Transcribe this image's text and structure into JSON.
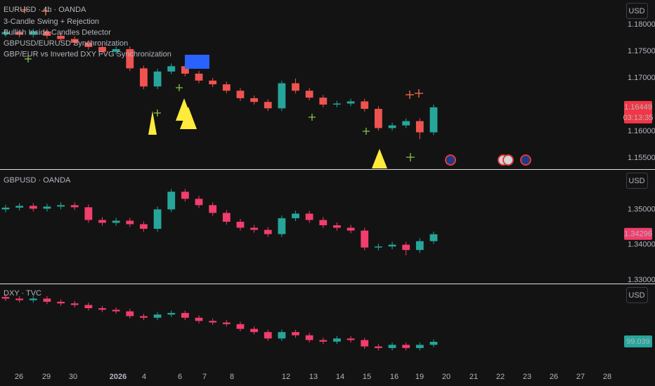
{
  "chart_data": [
    {
      "type": "candlestick",
      "title": "EURUSD · 4h · OANDA",
      "indicators": [
        "3-Candle Swing + Rejection",
        "Bullish Inside Candles Detector",
        "GBPUSD/EURUSD Synchronization",
        "GBP/EUR vs Inverted DXY FVG Synchronization"
      ],
      "currency": "USD",
      "countdown": "03:13:35",
      "price_label_color": "#f23645",
      "up_color": "#26a69a",
      "down_color": "#ef5350",
      "grid": false,
      "ylim": [
        1.15303,
        1.18461
      ],
      "yticks": [
        {
          "value": 1.155,
          "label": "1.15500"
        },
        {
          "value": 1.16,
          "label": "1.16000"
        },
        {
          "value": 1.17,
          "label": "1.17000"
        },
        {
          "value": 1.175,
          "label": "1.17500"
        },
        {
          "value": 1.18,
          "label": "1.18000"
        }
      ],
      "open": [
        1.1782,
        1.1786,
        1.1781,
        1.1787,
        1.1779,
        1.1773,
        1.1766,
        1.1758,
        1.1749,
        1.1754,
        1.1718,
        1.1684,
        1.1712,
        1.1722,
        1.1708,
        1.1695,
        1.1688,
        1.1676,
        1.1662,
        1.1655,
        1.1643,
        1.169,
        1.1676,
        1.1663,
        1.165,
        1.1652,
        1.1656,
        1.1642,
        1.1606,
        1.1611,
        1.1619,
        1.1598
      ],
      "high": [
        1.1791,
        1.1791,
        1.1792,
        1.1792,
        1.1784,
        1.1778,
        1.1771,
        1.1763,
        1.1759,
        1.1759,
        1.1723,
        1.1717,
        1.1727,
        1.1727,
        1.1713,
        1.17,
        1.1693,
        1.1681,
        1.1667,
        1.166,
        1.1695,
        1.1699,
        1.1681,
        1.1668,
        1.1657,
        1.1661,
        1.1661,
        1.1647,
        1.1616,
        1.1624,
        1.1624,
        1.165
      ],
      "low": [
        1.1777,
        1.1776,
        1.1776,
        1.1774,
        1.1768,
        1.1761,
        1.1753,
        1.1744,
        1.1744,
        1.1713,
        1.1679,
        1.1679,
        1.1707,
        1.1703,
        1.169,
        1.1683,
        1.1671,
        1.1657,
        1.165,
        1.1638,
        1.1638,
        1.1671,
        1.1658,
        1.1645,
        1.1645,
        1.1647,
        1.1637,
        1.1601,
        1.1601,
        1.1606,
        1.1585,
        1.1593
      ],
      "close": [
        1.1786,
        1.1781,
        1.1787,
        1.1779,
        1.1773,
        1.1766,
        1.1758,
        1.1749,
        1.1754,
        1.1718,
        1.1684,
        1.1712,
        1.1722,
        1.1708,
        1.1695,
        1.1688,
        1.1676,
        1.1662,
        1.1655,
        1.1643,
        1.169,
        1.1676,
        1.1663,
        1.165,
        1.1652,
        1.1656,
        1.1642,
        1.1606,
        1.1611,
        1.1619,
        1.1598,
        1.16449
      ]
    },
    {
      "type": "candlestick",
      "title": "GBPUSD · OANDA",
      "currency": "USD",
      "price_label_color": "#f23d6d",
      "up_color": "#26a69a",
      "down_color": "#f23d6d",
      "grid": false,
      "ylim": [
        1.3292,
        1.3612
      ],
      "yticks": [
        {
          "value": 1.33,
          "label": "1.33000"
        },
        {
          "value": 1.34,
          "label": "1.34000"
        },
        {
          "value": 1.35,
          "label": "1.35000"
        }
      ],
      "open": [
        1.35,
        1.3505,
        1.351,
        1.3502,
        1.3508,
        1.3512,
        1.3506,
        1.347,
        1.3462,
        1.3468,
        1.3458,
        1.3445,
        1.35,
        1.355,
        1.353,
        1.3512,
        1.349,
        1.3465,
        1.3448,
        1.3442,
        1.343,
        1.3475,
        1.3488,
        1.347,
        1.3455,
        1.3448,
        1.344,
        1.3392,
        1.3395,
        1.34,
        1.3385,
        1.341
      ],
      "high": [
        1.3513,
        1.3518,
        1.3518,
        1.3516,
        1.352,
        1.352,
        1.3514,
        1.3478,
        1.3476,
        1.3476,
        1.3466,
        1.3508,
        1.3558,
        1.3558,
        1.3538,
        1.352,
        1.3498,
        1.3473,
        1.3456,
        1.345,
        1.3483,
        1.3496,
        1.3496,
        1.3478,
        1.3463,
        1.3456,
        1.3448,
        1.3403,
        1.3408,
        1.3408,
        1.3418,
        1.3437
      ],
      "low": [
        1.3492,
        1.3497,
        1.3494,
        1.3494,
        1.35,
        1.3498,
        1.3462,
        1.3454,
        1.3454,
        1.345,
        1.3437,
        1.3437,
        1.3492,
        1.3522,
        1.3504,
        1.3482,
        1.3457,
        1.344,
        1.3434,
        1.3422,
        1.3422,
        1.3467,
        1.3462,
        1.3447,
        1.344,
        1.3432,
        1.3384,
        1.3384,
        1.3387,
        1.337,
        1.3377,
        1.3402
      ],
      "close": [
        1.3505,
        1.351,
        1.3502,
        1.3508,
        1.3512,
        1.3506,
        1.347,
        1.3462,
        1.3468,
        1.3458,
        1.3445,
        1.35,
        1.355,
        1.353,
        1.3512,
        1.349,
        1.3465,
        1.3448,
        1.3442,
        1.343,
        1.3475,
        1.3488,
        1.347,
        1.3455,
        1.3448,
        1.344,
        1.3392,
        1.3395,
        1.34,
        1.3385,
        1.341,
        1.34296
      ]
    },
    {
      "type": "candlestick",
      "title": "DXY · TVC",
      "currency": "USD",
      "price_label_color": "#26a69a",
      "up_color": "#26a69a",
      "down_color": "#f23d6d",
      "grid": false,
      "ylim": [
        98.85,
        99.4
      ],
      "yticks": [],
      "open": [
        99.32,
        99.31,
        99.3,
        99.31,
        99.29,
        99.28,
        99.27,
        99.25,
        99.24,
        99.23,
        99.2,
        99.19,
        99.21,
        99.22,
        99.19,
        99.17,
        99.16,
        99.15,
        99.12,
        99.1,
        99.06,
        99.1,
        99.08,
        99.05,
        99.04,
        99.06,
        99.05,
        99.01,
        99.0,
        99.02,
        99.0,
        99.02
      ],
      "high": [
        99.335,
        99.325,
        99.325,
        99.325,
        99.305,
        99.295,
        99.285,
        99.265,
        99.255,
        99.245,
        99.215,
        99.225,
        99.235,
        99.235,
        99.205,
        99.185,
        99.175,
        99.165,
        99.135,
        99.115,
        99.115,
        99.115,
        99.095,
        99.065,
        99.075,
        99.075,
        99.065,
        99.025,
        99.035,
        99.035,
        99.035,
        99.054
      ],
      "low": [
        99.295,
        99.285,
        99.285,
        99.275,
        99.265,
        99.255,
        99.235,
        99.225,
        99.215,
        99.185,
        99.175,
        99.175,
        99.195,
        99.175,
        99.155,
        99.145,
        99.135,
        99.105,
        99.085,
        99.045,
        99.045,
        99.065,
        99.035,
        99.025,
        99.025,
        99.035,
        98.995,
        98.985,
        98.985,
        98.985,
        98.985,
        99.005
      ],
      "close": [
        99.31,
        99.3,
        99.31,
        99.29,
        99.28,
        99.27,
        99.25,
        99.24,
        99.23,
        99.2,
        99.19,
        99.21,
        99.22,
        99.19,
        99.17,
        99.16,
        99.15,
        99.12,
        99.1,
        99.06,
        99.1,
        99.08,
        99.05,
        99.04,
        99.06,
        99.05,
        99.01,
        99.0,
        99.02,
        99.0,
        99.02,
        99.039
      ]
    }
  ],
  "x_axis": {
    "labels": [
      "26",
      "29",
      "30",
      "2026",
      "4",
      "6",
      "7",
      "8",
      "12",
      "13",
      "14",
      "15",
      "16",
      "19",
      "20",
      "21",
      "22",
      "23",
      "26",
      "27",
      "28"
    ],
    "bold": "2026"
  }
}
